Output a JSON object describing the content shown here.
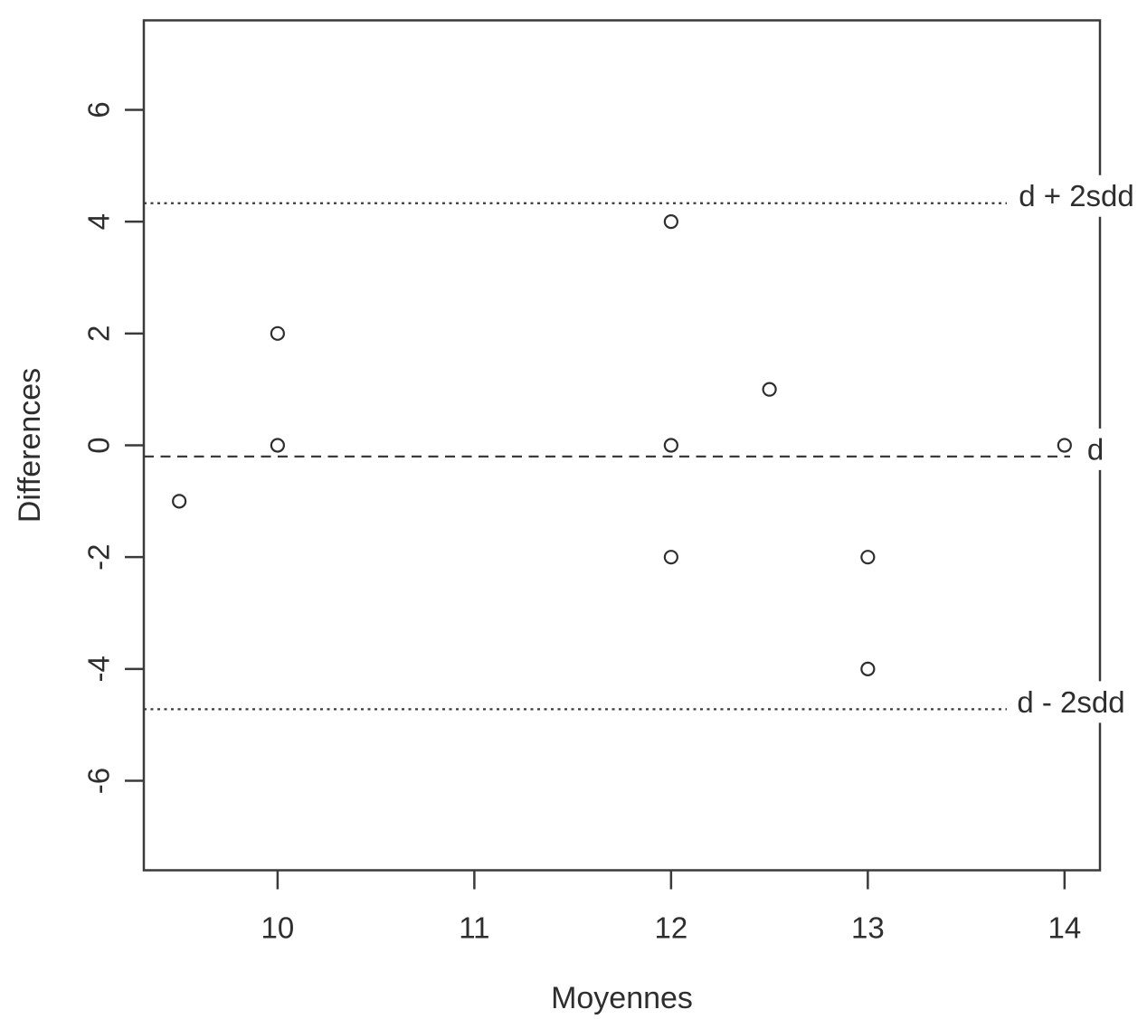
{
  "chart_data": {
    "type": "scatter",
    "title": "",
    "xlabel": "Moyennes",
    "ylabel": "Differences",
    "x_ticks": [
      10,
      11,
      12,
      13,
      14
    ],
    "y_ticks": [
      -6,
      -4,
      -2,
      0,
      2,
      4,
      6
    ],
    "xlim": [
      9.32,
      14.18
    ],
    "ylim": [
      -7.6,
      7.6
    ],
    "grid": false,
    "marker": "open-circle",
    "points": [
      {
        "x": 9.5,
        "y": -1
      },
      {
        "x": 10,
        "y": 2
      },
      {
        "x": 10,
        "y": 0
      },
      {
        "x": 12,
        "y": 4
      },
      {
        "x": 12,
        "y": 0
      },
      {
        "x": 12,
        "y": -2
      },
      {
        "x": 12.5,
        "y": 1
      },
      {
        "x": 13,
        "y": -2
      },
      {
        "x": 13,
        "y": -4
      },
      {
        "x": 14,
        "y": 0
      }
    ],
    "reference_lines": [
      {
        "label": "d + 2sdd",
        "value": 4.33,
        "style": "dotted"
      },
      {
        "label": "d",
        "value": -0.2,
        "style": "dashed"
      },
      {
        "label": "d - 2sdd",
        "value": -4.72,
        "style": "dotted"
      }
    ],
    "colors": {
      "background": "#ffffff",
      "line": "#3a3a3a",
      "marker": "#2e2e2e",
      "text": "#2e2e2e"
    }
  }
}
